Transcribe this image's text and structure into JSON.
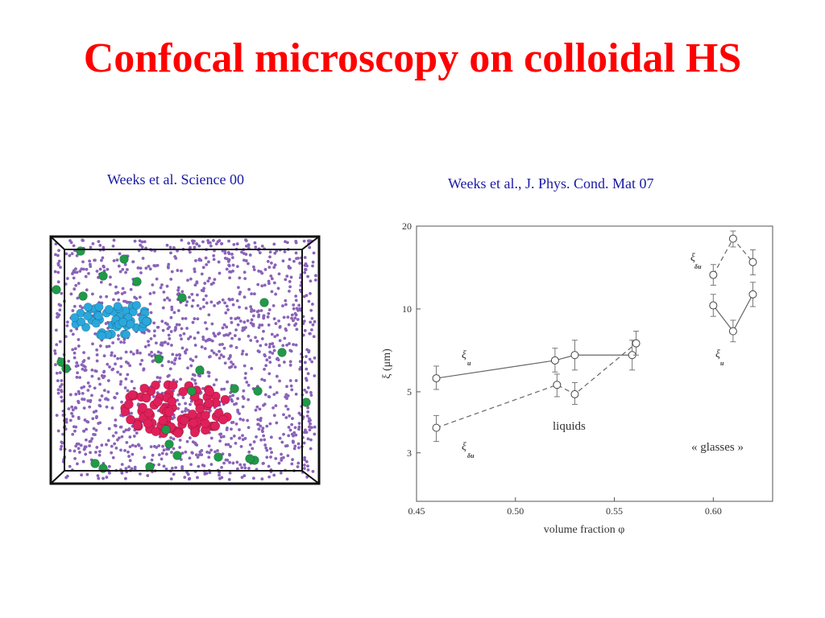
{
  "slide": {
    "title": "Confocal microscopy on colloidal HS",
    "caption_left": "Weeks et al. Science 00",
    "caption_right": "Weeks et al., J. Phys. Cond. Mat 07"
  },
  "colors": {
    "title": "#ff0000",
    "caption": "#1a1aa6",
    "background_particles": "#8a63b8",
    "cluster_blue": "#2aa7dc",
    "cluster_red": "#e0205a",
    "particles_green": "#1f9a48",
    "plot_ink": "#444444"
  },
  "chart_data": {
    "type": "line",
    "xlabel": "volume fraction φ",
    "ylabel": "ξ (μm)",
    "xlim": [
      0.45,
      0.63
    ],
    "ylim": [
      2,
      20
    ],
    "yscale": "log",
    "xticks": [
      "0.45",
      "0.50",
      "0.55",
      "0.60"
    ],
    "xtick_values": [
      0.45,
      0.5,
      0.55,
      0.6
    ],
    "yticks": [
      "3",
      "5",
      "10",
      "20"
    ],
    "ytick_values": [
      3,
      5,
      10,
      20
    ],
    "grid": false,
    "series": [
      {
        "name": "ξ_u",
        "line": "solid",
        "segments": [
          {
            "x": [
              0.46,
              0.52,
              0.53,
              0.559
            ],
            "y": [
              5.6,
              6.5,
              6.8,
              6.8
            ],
            "err_low": [
              5.1,
              5.9,
              6.0,
              6.0
            ],
            "err_high": [
              6.2,
              7.2,
              7.7,
              7.7
            ]
          },
          {
            "x": [
              0.6,
              0.61,
              0.62
            ],
            "y": [
              10.3,
              8.3,
              11.3
            ],
            "err_low": [
              9.4,
              7.6,
              10.2
            ],
            "err_high": [
              11.3,
              9.1,
              12.5
            ]
          }
        ]
      },
      {
        "name": "ξ_δu",
        "line": "dashed",
        "segments": [
          {
            "x": [
              0.46,
              0.521,
              0.53,
              0.561
            ],
            "y": [
              3.7,
              5.3,
              4.9,
              7.5
            ],
            "err_low": [
              3.3,
              4.8,
              4.5,
              6.8
            ],
            "err_high": [
              4.1,
              5.8,
              5.4,
              8.3
            ]
          },
          {
            "x": [
              0.6,
              0.61,
              0.62
            ],
            "y": [
              13.3,
              18.0,
              14.8
            ],
            "err_low": [
              12.2,
              16.8,
              13.3
            ],
            "err_high": [
              14.5,
              19.2,
              16.4
            ]
          }
        ]
      }
    ],
    "labels": {
      "xi_u": "ξ",
      "sub_u": "u",
      "sub_du": "δu",
      "liquids": "liquids",
      "glasses": "« glasses »"
    }
  }
}
